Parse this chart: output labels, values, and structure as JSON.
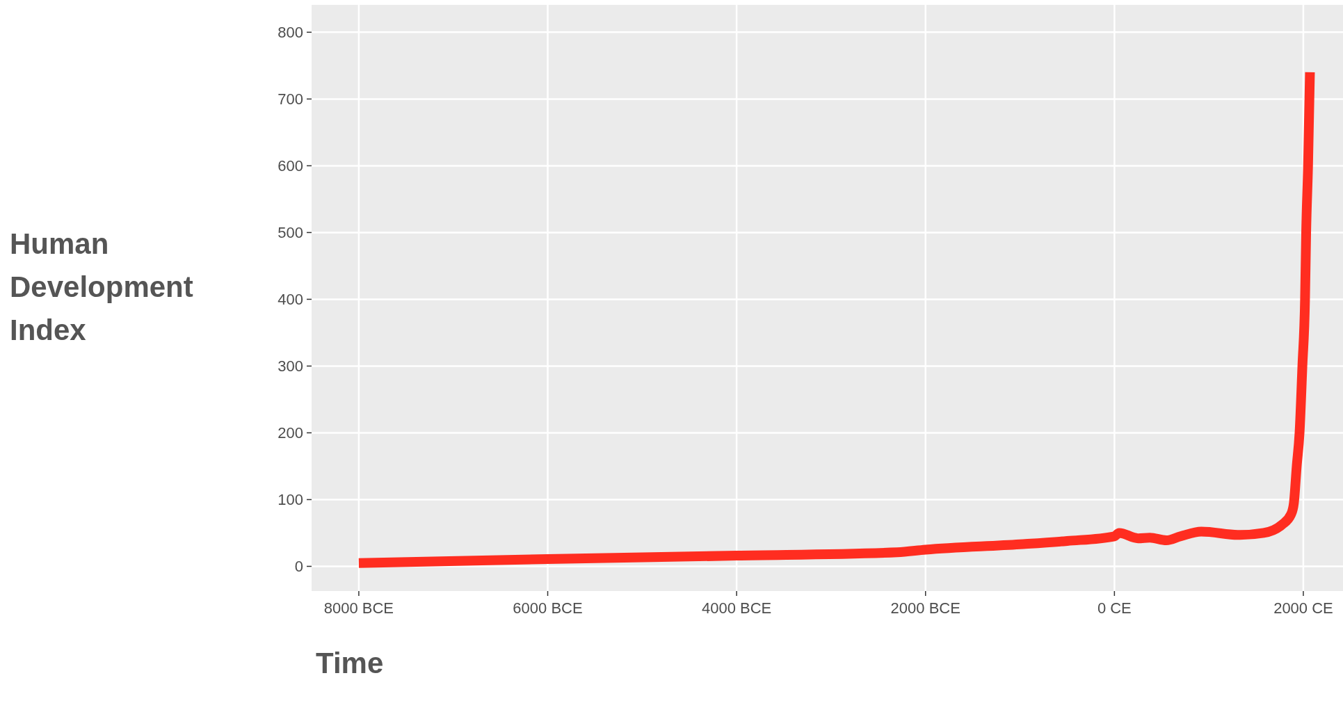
{
  "chart_data": {
    "type": "line",
    "xlabel": "Time",
    "ylabel": "Human Development Index",
    "x": [
      -8000,
      -6000,
      -4000,
      -2300,
      -2000,
      -1000,
      -500,
      0,
      50,
      250,
      375,
      550,
      700,
      920,
      1330,
      1580,
      1770,
      1870,
      1900,
      1930,
      1960,
      1990,
      2018,
      2030,
      2050,
      2070
    ],
    "series": [
      {
        "color": "#ff2d20",
        "values": [
          5,
          11,
          16,
          21,
          25,
          33,
          38,
          45,
          50,
          42,
          43,
          39,
          45,
          52,
          47,
          50,
          62,
          78,
          95,
          150,
          200,
          300,
          400,
          500,
          600,
          740
        ]
      }
    ],
    "xlim": [
      -8500,
      2420
    ],
    "ylim": [
      -37,
      841
    ],
    "xticks": [
      {
        "value": -8000,
        "label": "8000 BCE"
      },
      {
        "value": -6000,
        "label": "6000 BCE"
      },
      {
        "value": -4000,
        "label": "4000 BCE"
      },
      {
        "value": -2000,
        "label": "2000 BCE"
      },
      {
        "value": 0,
        "label": "0 CE"
      },
      {
        "value": 2000,
        "label": "2000 CE"
      }
    ],
    "yticks": [
      0,
      100,
      200,
      300,
      400,
      500,
      600,
      700,
      800
    ],
    "grid": true,
    "line_style": "solid"
  }
}
